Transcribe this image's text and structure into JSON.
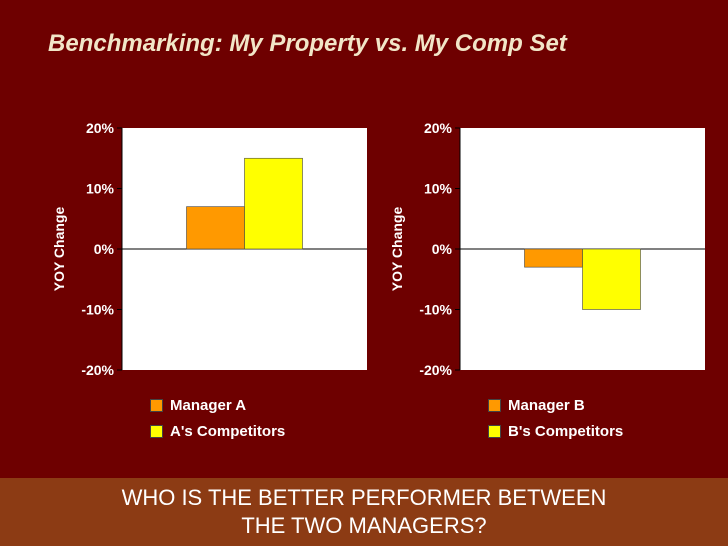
{
  "title": "Benchmarking: My Property vs. My Comp Set",
  "footer": {
    "line1": "WHO IS THE BETTER PERFORMER BETWEEN",
    "line2": "THE TWO MANAGERS?"
  },
  "colors": {
    "background": "#6e0000",
    "title": "#f2e6c8",
    "footer_bg": "#8c3b14",
    "series_orange": "#ff9900",
    "series_yellow": "#ffff00"
  },
  "chart_data": [
    {
      "type": "bar",
      "ylabel": "YOY Change",
      "ylim": [
        -20,
        20
      ],
      "yticks": [
        "20%",
        "10%",
        "0%",
        "-10%",
        "-20%"
      ],
      "series": [
        {
          "name": "Manager A",
          "values": [
            7
          ],
          "label": "7%",
          "color": "#ff9900"
        },
        {
          "name": "A's Competitors",
          "values": [
            15
          ],
          "label": "15%",
          "color": "#ffff00"
        }
      ],
      "legend": "bottom"
    },
    {
      "type": "bar",
      "ylabel": "YOY Change",
      "ylim": [
        -20,
        20
      ],
      "yticks": [
        "20%",
        "10%",
        "0%",
        "-10%",
        "-20%"
      ],
      "series": [
        {
          "name": "Manager B",
          "values": [
            -3
          ],
          "label": "-3%",
          "color": "#ff9900"
        },
        {
          "name": "B's Competitors",
          "values": [
            -10
          ],
          "label": "-10%",
          "color": "#ffff00"
        }
      ],
      "legend": "bottom"
    }
  ]
}
